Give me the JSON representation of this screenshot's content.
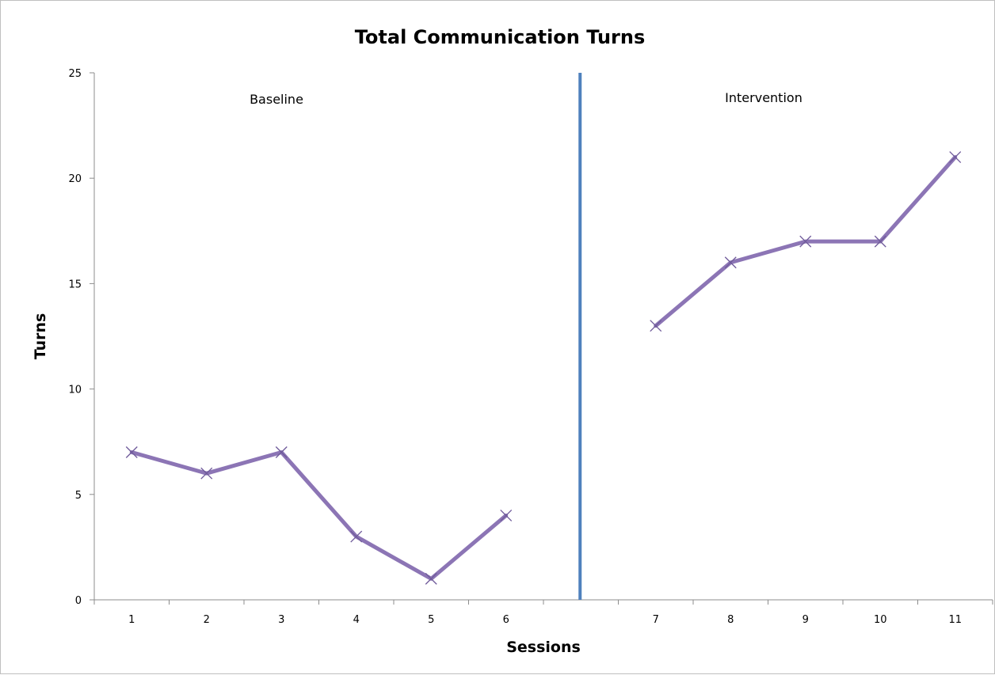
{
  "chart_data": {
    "type": "line",
    "title": "Total Communication Turns",
    "xlabel": "Sessions",
    "ylabel": "Turns",
    "ylim": [
      0,
      25
    ],
    "y_ticks": [
      "0",
      "5",
      "10",
      "15",
      "20",
      "25"
    ],
    "categories": [
      "1",
      "2",
      "3",
      "4",
      "5",
      "6",
      "",
      "7",
      "8",
      "9",
      "10",
      "11"
    ],
    "series": [
      {
        "phase": "Baseline",
        "x": [
          "1",
          "2",
          "3",
          "4",
          "5",
          "6"
        ],
        "values": [
          7,
          6,
          7,
          3,
          1,
          4
        ]
      },
      {
        "phase": "Intervention",
        "x": [
          "7",
          "8",
          "9",
          "10",
          "11"
        ],
        "values": [
          13,
          16,
          17,
          17,
          21
        ]
      }
    ],
    "phase_labels": [
      "Baseline",
      "Intervention"
    ],
    "grid": false,
    "legend": "none",
    "colors": {
      "line": "#8c75b5",
      "marker": "#6f5a9a",
      "phase_divider": "#4f81bd",
      "axis": "#8c8c8c"
    }
  }
}
